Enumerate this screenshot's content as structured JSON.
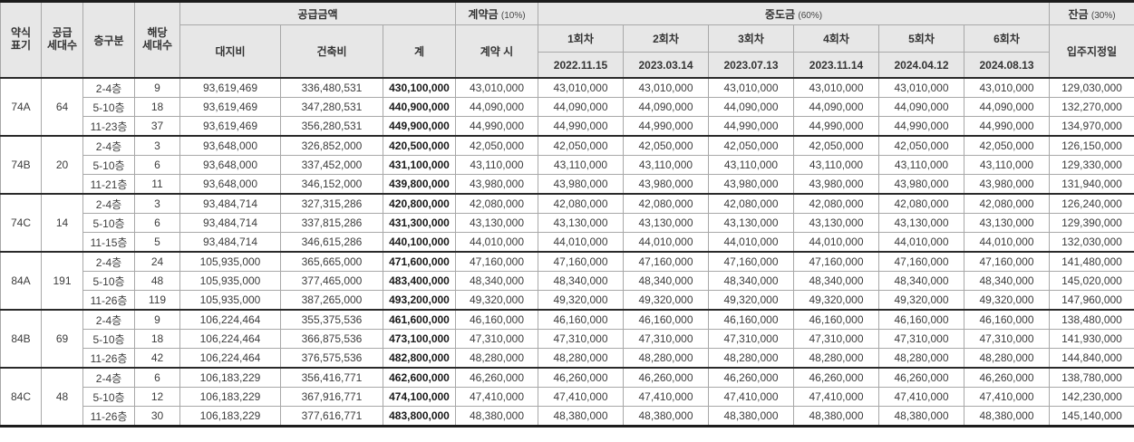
{
  "colors": {
    "header_bg": "#e7e7e7",
    "frame_border": "#1c1c1c",
    "grid_line": "#a8a8a8"
  },
  "header": {
    "type": "약식\n표기",
    "supply": "공급\n세대수",
    "floor": "층구분",
    "units": "해당\n세대수",
    "supply_amount_group": "공급금액",
    "land": "대지비",
    "construction": "건축비",
    "total": "계",
    "contract_group": "계약금",
    "contract_pct": "(10%)",
    "contract_when": "계약 시",
    "interim_group": "중도금",
    "interim_pct": "(60%)",
    "installments": [
      {
        "label": "1회차",
        "date": "2022.11.15"
      },
      {
        "label": "2회차",
        "date": "2023.03.14"
      },
      {
        "label": "3회차",
        "date": "2023.07.13"
      },
      {
        "label": "4회차",
        "date": "2023.11.14"
      },
      {
        "label": "5회차",
        "date": "2024.04.12"
      },
      {
        "label": "6회차",
        "date": "2024.08.13"
      }
    ],
    "balance_group": "잔금",
    "balance_pct": "(30%)",
    "balance_when": "입주지정일"
  },
  "groups": [
    {
      "type": "74A",
      "supply": "64",
      "rows": [
        {
          "floor": "2-4층",
          "units": "9",
          "land": "93,619,469",
          "construction": "336,480,531",
          "total": "430,100,000",
          "payment": "43,010,000",
          "balance": "129,030,000"
        },
        {
          "floor": "5-10층",
          "units": "18",
          "land": "93,619,469",
          "construction": "347,280,531",
          "total": "440,900,000",
          "payment": "44,090,000",
          "balance": "132,270,000"
        },
        {
          "floor": "11-23층",
          "units": "37",
          "land": "93,619,469",
          "construction": "356,280,531",
          "total": "449,900,000",
          "payment": "44,990,000",
          "balance": "134,970,000"
        }
      ]
    },
    {
      "type": "74B",
      "supply": "20",
      "rows": [
        {
          "floor": "2-4층",
          "units": "3",
          "land": "93,648,000",
          "construction": "326,852,000",
          "total": "420,500,000",
          "payment": "42,050,000",
          "balance": "126,150,000"
        },
        {
          "floor": "5-10층",
          "units": "6",
          "land": "93,648,000",
          "construction": "337,452,000",
          "total": "431,100,000",
          "payment": "43,110,000",
          "balance": "129,330,000"
        },
        {
          "floor": "11-21층",
          "units": "11",
          "land": "93,648,000",
          "construction": "346,152,000",
          "total": "439,800,000",
          "payment": "43,980,000",
          "balance": "131,940,000"
        }
      ]
    },
    {
      "type": "74C",
      "supply": "14",
      "rows": [
        {
          "floor": "2-4층",
          "units": "3",
          "land": "93,484,714",
          "construction": "327,315,286",
          "total": "420,800,000",
          "payment": "42,080,000",
          "balance": "126,240,000"
        },
        {
          "floor": "5-10층",
          "units": "6",
          "land": "93,484,714",
          "construction": "337,815,286",
          "total": "431,300,000",
          "payment": "43,130,000",
          "balance": "129,390,000"
        },
        {
          "floor": "11-15층",
          "units": "5",
          "land": "93,484,714",
          "construction": "346,615,286",
          "total": "440,100,000",
          "payment": "44,010,000",
          "balance": "132,030,000"
        }
      ]
    },
    {
      "type": "84A",
      "supply": "191",
      "rows": [
        {
          "floor": "2-4층",
          "units": "24",
          "land": "105,935,000",
          "construction": "365,665,000",
          "total": "471,600,000",
          "payment": "47,160,000",
          "balance": "141,480,000"
        },
        {
          "floor": "5-10층",
          "units": "48",
          "land": "105,935,000",
          "construction": "377,465,000",
          "total": "483,400,000",
          "payment": "48,340,000",
          "balance": "145,020,000"
        },
        {
          "floor": "11-26층",
          "units": "119",
          "land": "105,935,000",
          "construction": "387,265,000",
          "total": "493,200,000",
          "payment": "49,320,000",
          "balance": "147,960,000"
        }
      ]
    },
    {
      "type": "84B",
      "supply": "69",
      "rows": [
        {
          "floor": "2-4층",
          "units": "9",
          "land": "106,224,464",
          "construction": "355,375,536",
          "total": "461,600,000",
          "payment": "46,160,000",
          "balance": "138,480,000"
        },
        {
          "floor": "5-10층",
          "units": "18",
          "land": "106,224,464",
          "construction": "366,875,536",
          "total": "473,100,000",
          "payment": "47,310,000",
          "balance": "141,930,000"
        },
        {
          "floor": "11-26층",
          "units": "42",
          "land": "106,224,464",
          "construction": "376,575,536",
          "total": "482,800,000",
          "payment": "48,280,000",
          "balance": "144,840,000"
        }
      ]
    },
    {
      "type": "84C",
      "supply": "48",
      "rows": [
        {
          "floor": "2-4층",
          "units": "6",
          "land": "106,183,229",
          "construction": "356,416,771",
          "total": "462,600,000",
          "payment": "46,260,000",
          "balance": "138,780,000"
        },
        {
          "floor": "5-10층",
          "units": "12",
          "land": "106,183,229",
          "construction": "367,916,771",
          "total": "474,100,000",
          "payment": "47,410,000",
          "balance": "142,230,000"
        },
        {
          "floor": "11-26층",
          "units": "30",
          "land": "106,183,229",
          "construction": "377,616,771",
          "total": "483,800,000",
          "payment": "48,380,000",
          "balance": "145,140,000"
        }
      ]
    }
  ]
}
